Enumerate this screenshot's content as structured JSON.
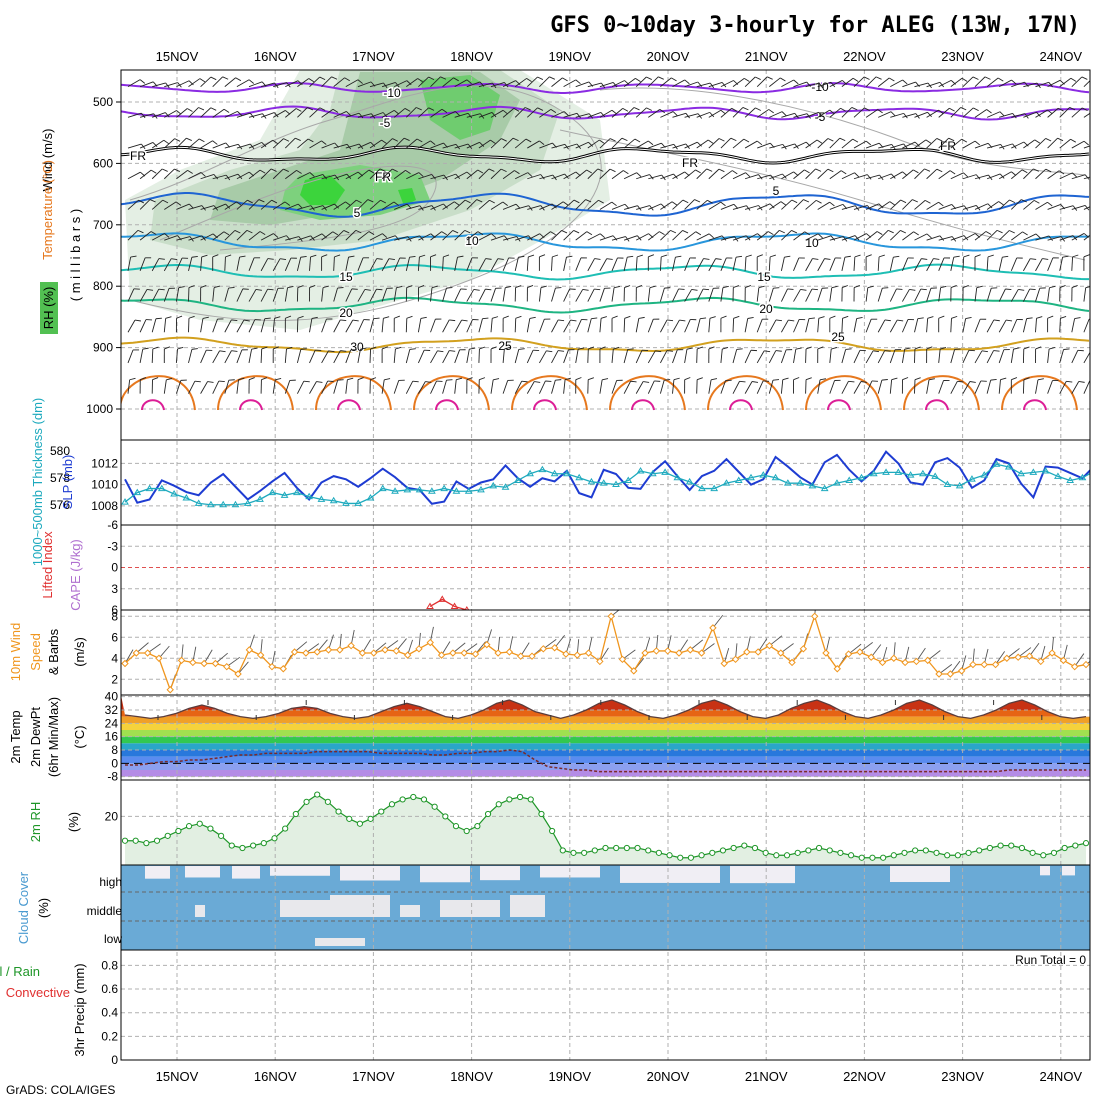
{
  "title": "GFS 0~10day 3-hourly for ALEG (13W, 17N)",
  "footer": "GrADS: COLA/IGES",
  "run_total": "Run Total = 0",
  "dates": [
    "15NOV",
    "16NOV",
    "17NOV",
    "18NOV",
    "19NOV",
    "20NOV",
    "21NOV",
    "22NOV",
    "23NOV",
    "24NOV"
  ],
  "colors": {
    "temp_neg10": "#8a2be2",
    "temp_neg5": "#8a2be2",
    "temp_fr": "#000000",
    "temp_5": "#1e64d2",
    "temp_10": "#2896dc",
    "temp_15": "#1ebeb4",
    "temp_20": "#1eb482",
    "temp_25": "#d2a01e",
    "temp_30": "#e6781e",
    "temp_35": "#dc1e96",
    "slp": "#1e3cd2",
    "thickness": "#1eaabe",
    "wind": "#f0961e",
    "rh2m": "#1e9628",
    "rh_fill": "#e2efe2",
    "cloud": "#6aaad6",
    "cloud_bg": "#f0eef4"
  },
  "panels": {
    "upper": {
      "ylabel_wind": "Wind (m/s)",
      "ylabel_temp": "Temperature (°C)",
      "ylabel_rh": "RH (%)",
      "ylabel_mb": "( m i l l i b a r s )",
      "yticks": [
        "500",
        "600",
        "700",
        "800",
        "900",
        "1000"
      ],
      "contour_labels": [
        "-10",
        "-5",
        "FR",
        "5",
        "10",
        "15",
        "20",
        "25",
        "30"
      ]
    },
    "slp": {
      "ylabel_slp": "SLP (mb)",
      "ylabel_thk": "1000~500mb Thickness (dm)",
      "yticks_slp": [
        "1008",
        "1010",
        "1012"
      ],
      "yticks_thk": [
        "576",
        "578",
        "580"
      ]
    },
    "cape": {
      "ylabel_li": "Lifted Index",
      "ylabel_cape": "CAPE (J/kg)",
      "yticks": [
        "-6",
        "-3",
        "0",
        "3",
        "6"
      ]
    },
    "wind10": {
      "ylabel_1": "10m Wind",
      "ylabel_2": "Speed",
      "ylabel_3": "& Barbs",
      "ylabel_units": "(m/s)",
      "yticks": [
        "2",
        "4",
        "6",
        "8"
      ]
    },
    "temp2m": {
      "ylabel_1": "2m Temp",
      "ylabel_2": "2m DewPt",
      "ylabel_3": "(6hr Min/Max)",
      "ylabel_units": "(°C)",
      "yticks": [
        "-8",
        "0",
        "8",
        "16",
        "24",
        "32",
        "40"
      ]
    },
    "rh2m": {
      "ylabel": "2m RH",
      "ylabel_units": "(%)",
      "yticks": [
        "20"
      ]
    },
    "cloud": {
      "ylabel": "Cloud Cover",
      "ylabel_units": "(%)",
      "levels": [
        "high",
        "middle",
        "low"
      ]
    },
    "precip": {
      "ylabel_1": "Total / Rain",
      "ylabel_2": "Convective",
      "ylabel_3": "3hr Precip (mm)",
      "yticks": [
        "0",
        "0.2",
        "0.4",
        "0.6",
        "0.8"
      ]
    }
  },
  "chart_data": [
    {
      "type": "line",
      "name": "SLP",
      "x_start": "15NOV",
      "step_hours": 3,
      "values": [
        1010.5,
        1008.3,
        1008.6,
        1010.4,
        1009.9,
        1009.3,
        1009.0,
        1010.2,
        1011.0,
        1009.8,
        1008.6,
        1009.4,
        1010.3,
        1011.1,
        1009.7,
        1008.6,
        1010.2,
        1010.8,
        1010.5,
        1009.8,
        1010.6,
        1011.5,
        1010.7,
        1009.7,
        1009.5,
        1008.2,
        1008.4,
        1010.3,
        1009.6,
        1010.2,
        1010.5,
        1011.8,
        1010.6,
        1009.8,
        1010.6,
        1010.3,
        1011.3,
        1009.2,
        1008.8,
        1011.4,
        1011.0,
        1009.7,
        1009.6,
        1011.2,
        1012.2,
        1010.8,
        1009.5,
        1010.8,
        1011.3,
        1012.4,
        1011.2,
        1010.0,
        1010.5,
        1012.6,
        1011.7,
        1010.7,
        1010.0,
        1012.1,
        1012.8,
        1011.4,
        1010.3,
        1011.3,
        1013.1,
        1012.0,
        1010.2,
        1010.0,
        1012.1,
        1012.5,
        1011.6,
        1009.7,
        1010.4,
        1012.4,
        1012.0,
        1010.1,
        1008.8,
        1011.7,
        1011.6,
        1011.1,
        1010.6,
        1011.8,
        1010.8,
        1011.3,
        1011.5
      ]
    },
    {
      "type": "line",
      "name": "Thickness",
      "x_start": "15NOV",
      "step_hours": 3,
      "values": [
        576.2,
        576.9,
        577.2,
        577.2,
        576.8,
        576.5,
        576.1,
        576.0,
        576.0,
        576.0,
        576.1,
        576.4,
        576.9,
        576.7,
        576.9,
        576.6,
        576.4,
        576.3,
        576.1,
        576.1,
        576.5,
        577.2,
        577.0,
        577.1,
        577.1,
        577.0,
        577.2,
        577.0,
        577.0,
        577.1,
        577.4,
        577.3,
        577.8,
        578.3,
        578.6,
        578.3,
        578.3,
        578.0,
        577.7,
        577.6,
        577.5,
        577.8,
        578.5,
        578.3,
        578.4,
        578.0,
        577.7,
        577.2,
        577.2,
        577.6,
        577.8,
        578.0,
        578.2,
        578.0,
        577.6,
        577.6,
        577.4,
        577.2,
        577.6,
        577.8,
        578.0,
        578.3,
        578.4,
        578.4,
        578.2,
        578.3,
        578.1,
        577.5,
        577.4,
        577.9,
        578.2,
        579.0,
        578.8,
        578.3,
        578.4,
        578.5,
        578.1,
        577.8,
        578.0,
        578.5,
        579.0,
        578.6,
        578.1
      ]
    },
    {
      "type": "line",
      "name": "Lifted Index",
      "x_start": "17NOV18Z",
      "step_hours": 3,
      "values": [
        5.5,
        4.5,
        5.5,
        6.0
      ]
    },
    {
      "type": "line",
      "name": "10m Wind Speed",
      "x_start": "15NOV",
      "step_hours": 3,
      "values": [
        3.5,
        4.5,
        4.5,
        4.0,
        1.0,
        3.8,
        3.6,
        3.5,
        3.5,
        3.2,
        2.5,
        4.8,
        4.3,
        3.2,
        3.0,
        4.6,
        4.5,
        4.6,
        4.8,
        4.8,
        5.2,
        4.5,
        4.5,
        4.8,
        4.7,
        4.3,
        4.9,
        5.5,
        4.3,
        4.5,
        4.5,
        4.4,
        5.3,
        4.5,
        4.6,
        4.2,
        4.2,
        4.9,
        5.0,
        4.4,
        4.3,
        4.5,
        3.7,
        8.0,
        3.9,
        2.8,
        4.5,
        4.7,
        4.7,
        4.5,
        4.8,
        4.5,
        6.9,
        3.5,
        3.9,
        4.6,
        4.6,
        5.2,
        4.5,
        3.6,
        4.9,
        8.0,
        4.5,
        3.0,
        4.4,
        4.6,
        4.1,
        3.6,
        4.0,
        3.6,
        3.7,
        3.8,
        2.5,
        2.5,
        2.8,
        3.4,
        3.4,
        3.4,
        4.0,
        4.1,
        4.2,
        3.7,
        4.5,
        3.8,
        3.2,
        3.4
      ]
    },
    {
      "type": "area",
      "name": "2m Temp",
      "x_start": "15NOV",
      "step_hours": 3,
      "values": [
        29,
        28,
        27,
        28,
        30,
        33,
        35,
        33,
        30,
        28,
        27,
        28,
        30,
        33,
        34,
        33,
        30,
        28,
        27,
        28,
        31,
        34,
        36,
        34,
        31,
        28,
        27,
        29,
        32,
        36,
        38,
        35,
        31,
        29,
        27,
        29,
        32,
        36,
        38,
        35,
        31,
        28,
        27,
        29,
        32,
        36,
        38,
        35,
        31,
        28,
        27,
        29,
        33,
        36,
        38,
        35,
        31,
        28,
        27,
        29,
        32,
        36,
        38,
        35,
        31,
        28,
        27,
        29,
        32,
        36,
        38,
        35,
        31,
        28,
        27,
        28
      ]
    },
    {
      "type": "line",
      "name": "2m DewPt",
      "x_start": "15NOV",
      "step_hours": 3,
      "values": [
        -1,
        -1,
        0,
        1,
        1,
        2,
        2,
        3,
        4,
        5,
        5,
        6,
        6,
        6,
        6,
        7,
        7,
        7,
        7,
        7,
        6,
        6,
        6,
        6,
        5,
        5,
        6,
        6,
        7,
        7,
        8,
        7,
        2,
        -2,
        -3,
        -4,
        -4,
        -5,
        -5,
        -5,
        -5,
        -5,
        -5,
        -5,
        -5,
        -5,
        -5,
        -5,
        -5,
        -5,
        -5,
        -5,
        -5,
        -5,
        -5,
        -5,
        -5,
        -5,
        -5,
        -5,
        -5,
        -5,
        -5,
        -5,
        -5,
        -5,
        -5,
        -5,
        -5,
        -4,
        -4,
        -4,
        -4,
        -4,
        -4,
        -4
      ]
    },
    {
      "type": "area",
      "name": "2m RH",
      "x_start": "15NOV",
      "step_hours": 3,
      "values": [
        10,
        10,
        9,
        10,
        12,
        14,
        16,
        17,
        15,
        12,
        8,
        7,
        8,
        9,
        11,
        15,
        21,
        26,
        29,
        26,
        22,
        19,
        17,
        19,
        22,
        25,
        27,
        28,
        27,
        24,
        20,
        16,
        14,
        16,
        21,
        25,
        27,
        28,
        27,
        21,
        14,
        6,
        5,
        5,
        6,
        7,
        7,
        7,
        7,
        6,
        5,
        4,
        3,
        3,
        4,
        5,
        6,
        7,
        8,
        7,
        5,
        4,
        4,
        5,
        6,
        7,
        6,
        5,
        4,
        3,
        3,
        3,
        4,
        5,
        6,
        6,
        5,
        4,
        4,
        5,
        6,
        7,
        8,
        8,
        7,
        5,
        4,
        5,
        7,
        8,
        9
      ]
    }
  ]
}
